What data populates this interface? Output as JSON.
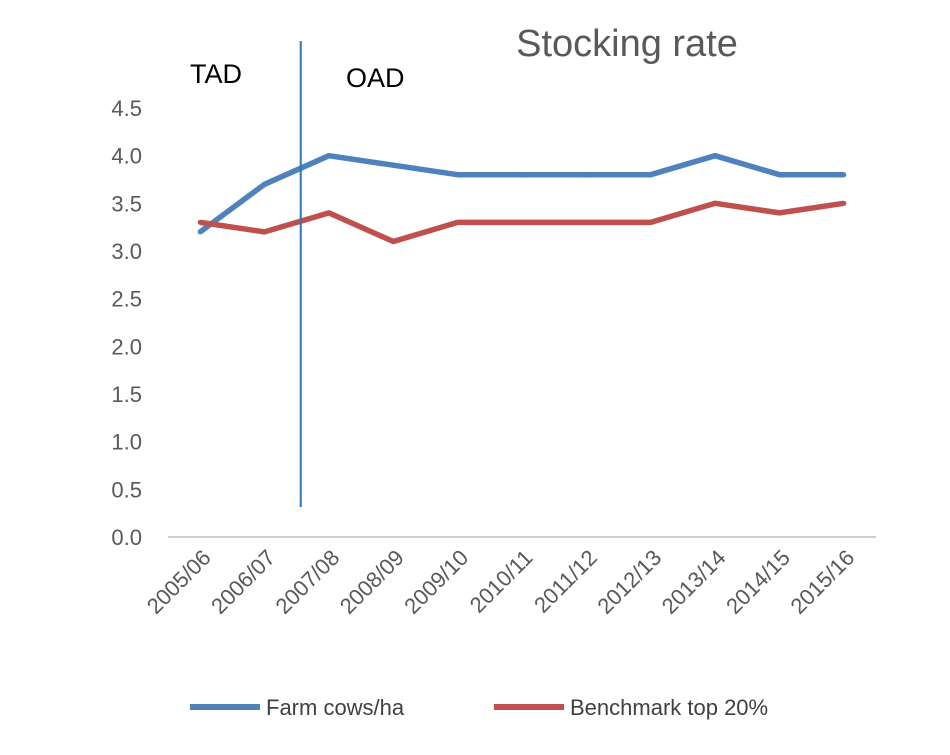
{
  "chart_data": {
    "type": "line",
    "title": "Stocking rate",
    "xlabel": "",
    "ylabel": "",
    "categories": [
      "2005/06",
      "2006/07",
      "2007/08",
      "2008/09",
      "2009/10",
      "2010/11",
      "2011/12",
      "2012/13",
      "2013/14",
      "2014/15",
      "2015/16"
    ],
    "series": [
      {
        "name": "Farm cows/ha",
        "color": "#4F81BD",
        "values": [
          3.2,
          3.7,
          4.0,
          3.9,
          3.8,
          3.8,
          3.8,
          3.8,
          4.0,
          3.8,
          3.8
        ]
      },
      {
        "name": "Benchmark top 20%",
        "color": "#C0504D",
        "values": [
          3.3,
          3.2,
          3.4,
          3.1,
          3.3,
          3.3,
          3.3,
          3.3,
          3.5,
          3.4,
          3.5
        ]
      }
    ],
    "ylim": [
      0,
      4.5
    ],
    "yticks": [
      "0.0",
      "0.5",
      "1.0",
      "1.5",
      "2.0",
      "2.5",
      "3.0",
      "3.5",
      "4.0",
      "4.5"
    ],
    "grid": false,
    "legend_position": "bottom",
    "annotations": [
      {
        "text": "TAD",
        "region": "before divider"
      },
      {
        "text": "OAD",
        "region": "after divider"
      }
    ],
    "divider": {
      "between": [
        "2006/07",
        "2007/08"
      ],
      "color": "#2E75B6"
    },
    "axis_color": "#BFBFBF"
  }
}
